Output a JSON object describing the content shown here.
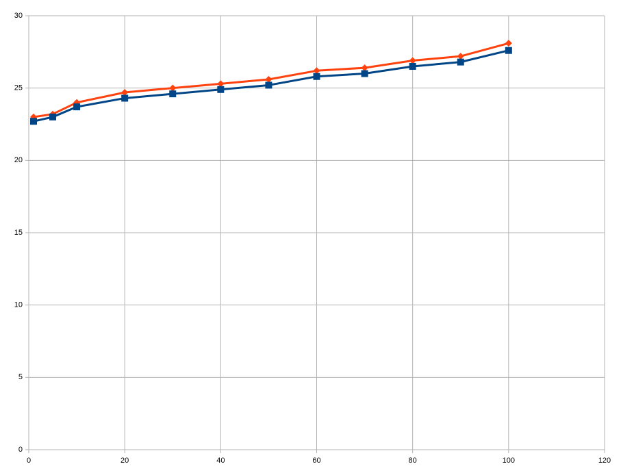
{
  "chart_data": {
    "type": "line",
    "x": [
      1,
      5,
      10,
      20,
      30,
      40,
      50,
      60,
      70,
      80,
      90,
      100
    ],
    "series": [
      {
        "color": "#ff420e",
        "marker": "diamond",
        "values": [
          23.0,
          23.2,
          24.0,
          24.7,
          25.0,
          25.3,
          25.6,
          26.2,
          26.4,
          26.9,
          27.2,
          28.1
        ]
      },
      {
        "color": "#004586",
        "marker": "square",
        "values": [
          22.7,
          23.0,
          23.7,
          24.3,
          24.6,
          24.9,
          25.2,
          25.8,
          26.0,
          26.5,
          26.8,
          27.6
        ]
      }
    ],
    "xlim": [
      0,
      120
    ],
    "xticks": [
      0,
      20,
      40,
      60,
      80,
      100,
      120
    ],
    "ylim": [
      0,
      30
    ],
    "yticks": [
      0,
      5,
      10,
      15,
      20,
      25,
      30
    ],
    "grid": true
  }
}
